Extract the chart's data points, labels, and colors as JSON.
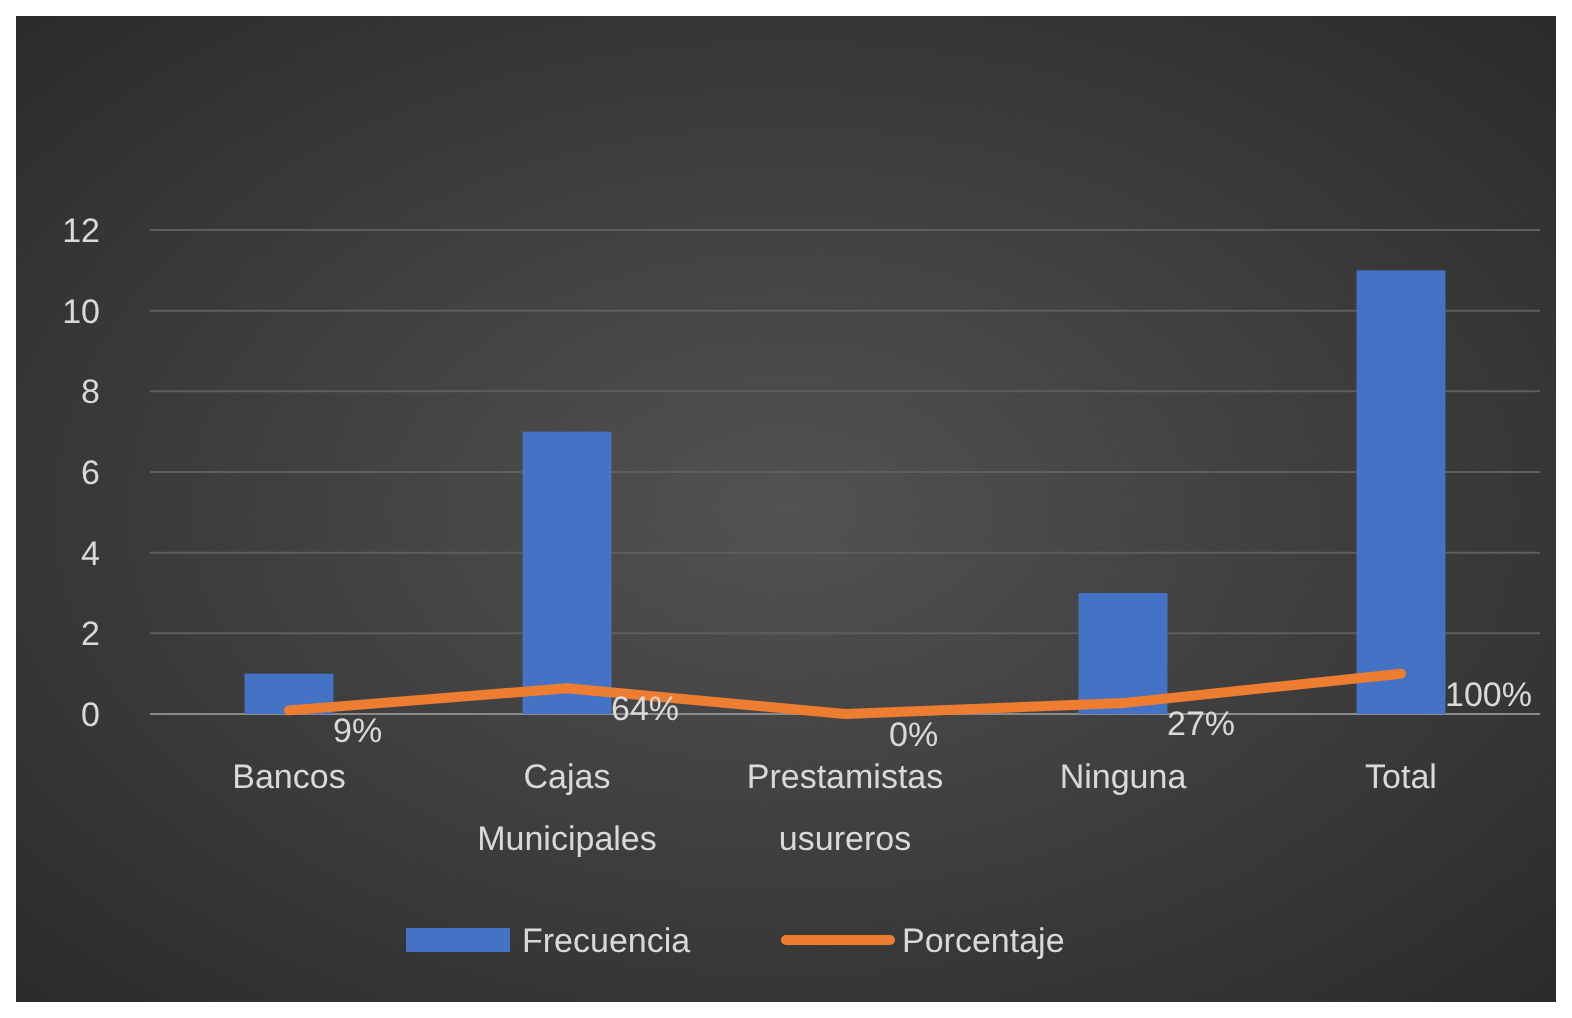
{
  "chart_data": {
    "type": "bar",
    "categories": [
      "Bancos",
      "Cajas Municipales",
      "Prestamistas usureros",
      "Ninguna",
      "Total"
    ],
    "series": [
      {
        "name": "Frecuencia",
        "color": "#4472c4",
        "values": [
          1,
          7,
          0,
          3,
          11
        ]
      },
      {
        "name": "Porcentaje",
        "type": "line",
        "color": "#ed7d31",
        "values": [
          0.09,
          0.64,
          0,
          0.27,
          1
        ],
        "value_labels": [
          "9%",
          "64%",
          "0%",
          "27%",
          "100%"
        ]
      }
    ],
    "ylim": [
      0,
      12
    ],
    "yticks": [
      0,
      2,
      4,
      6,
      8,
      10,
      12
    ],
    "grid": "y",
    "legend": "bottom",
    "marker": "none"
  }
}
